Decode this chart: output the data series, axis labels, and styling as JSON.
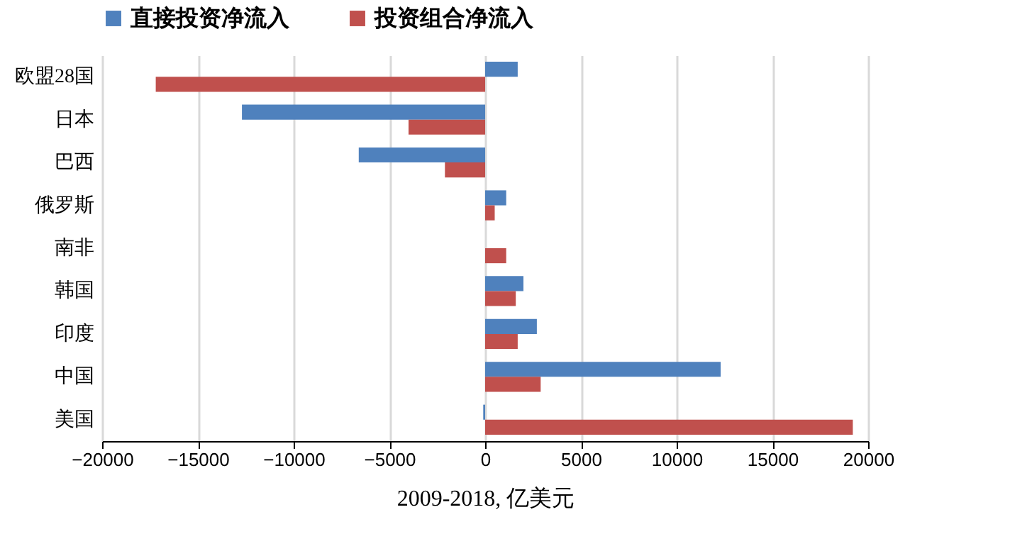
{
  "chart_data": {
    "type": "bar",
    "orientation": "horizontal",
    "xlabel": "2009-2018, 亿美元",
    "categories": [
      "欧盟28国",
      "日本",
      "巴西",
      "俄罗斯",
      "南非",
      "韩国",
      "印度",
      "中国",
      "美国"
    ],
    "series": [
      {
        "name": "直接投资净流入",
        "color": "#4f81bd",
        "values": [
          1700,
          -12700,
          -6600,
          1100,
          0,
          2000,
          2700,
          12300,
          -100
        ]
      },
      {
        "name": "投资组合净流入",
        "color": "#c0504d",
        "values": [
          -17200,
          -4000,
          -2100,
          500,
          1100,
          1600,
          1700,
          2900,
          19200
        ]
      }
    ],
    "xlim": [
      -20000,
      20000
    ],
    "xticks": [
      -20000,
      -15000,
      -10000,
      -5000,
      0,
      5000,
      10000,
      15000,
      20000
    ],
    "grid": "x",
    "legend": "top"
  }
}
